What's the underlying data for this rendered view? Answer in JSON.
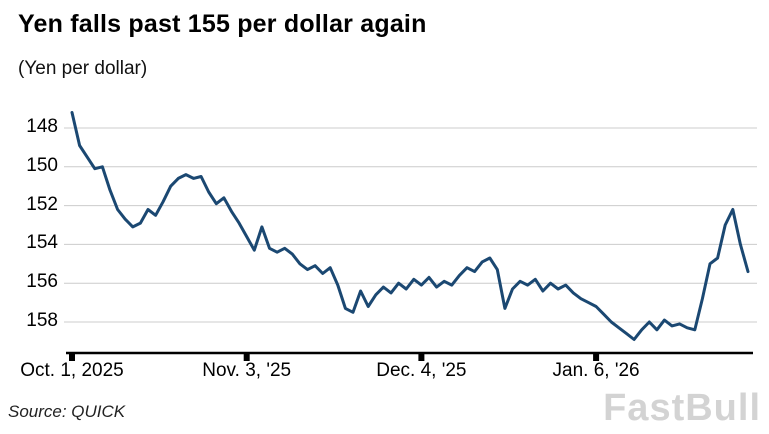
{
  "footer": {
    "source": "Source: QUICK",
    "watermark": "FastBull"
  },
  "chart_data": {
    "type": "line",
    "title": "Yen falls past 155 per dollar again",
    "subtitle": "(Yen per dollar)",
    "series_name": "Yen per dollar",
    "y_axis_inverted": true,
    "yticks": [
      "148",
      "150",
      "152",
      "154",
      "156",
      "158"
    ],
    "ytick_values": [
      148,
      150,
      152,
      154,
      156,
      158
    ],
    "xtick_labels": [
      "Oct. 1, 2025",
      "Nov. 3, '25",
      "Dec. 4, '25",
      "Jan. 6, '26"
    ],
    "xtick_indices": [
      0,
      23,
      46,
      69
    ],
    "ylim": [
      147.0,
      159.6
    ],
    "grid": true,
    "line_color": "#1b4872",
    "grid_color": "#cccccc",
    "axis_color": "#000000",
    "values": [
      147.2,
      148.9,
      149.5,
      150.1,
      150.0,
      151.2,
      152.2,
      152.7,
      153.1,
      152.9,
      152.2,
      152.5,
      151.8,
      151.0,
      150.6,
      150.4,
      150.6,
      150.5,
      151.3,
      151.9,
      151.6,
      152.3,
      152.9,
      153.6,
      154.3,
      153.1,
      154.2,
      154.4,
      154.2,
      154.5,
      155.0,
      155.3,
      155.1,
      155.5,
      155.2,
      156.1,
      157.3,
      157.5,
      156.4,
      157.2,
      156.6,
      156.2,
      156.5,
      156.0,
      156.3,
      155.8,
      156.1,
      155.7,
      156.2,
      155.9,
      156.1,
      155.6,
      155.2,
      155.4,
      154.9,
      154.7,
      155.3,
      157.3,
      156.3,
      155.9,
      156.1,
      155.8,
      156.4,
      156.0,
      156.3,
      156.1,
      156.5,
      156.8,
      157.0,
      157.2,
      157.6,
      158.0,
      158.3,
      158.6,
      158.9,
      158.4,
      158.0,
      158.4,
      157.9,
      158.2,
      158.1,
      158.3,
      158.4,
      156.8,
      155.0,
      154.7,
      153.0,
      152.2,
      154.0,
      155.4
    ]
  }
}
